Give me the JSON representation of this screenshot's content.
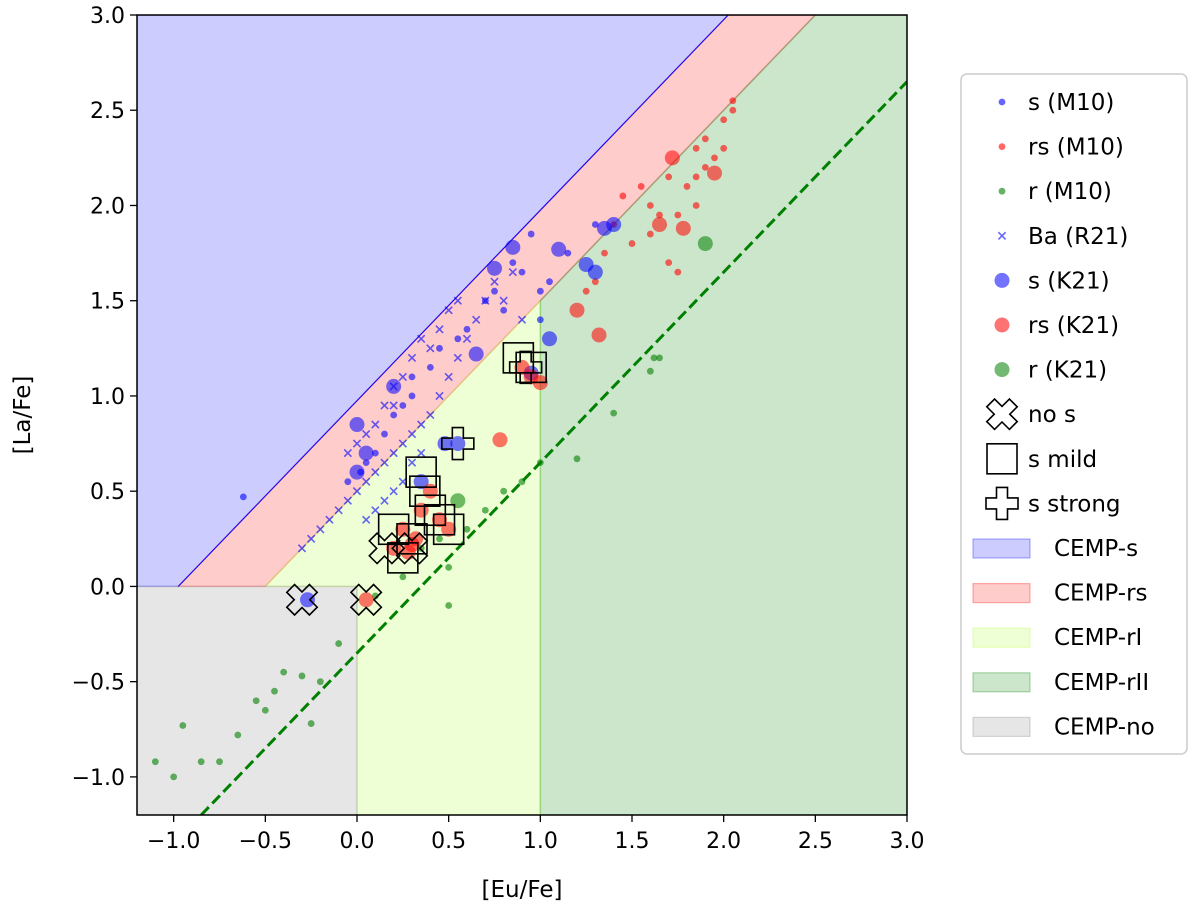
{
  "chart_data": {
    "type": "scatter",
    "xlabel": "[Eu/Fe]",
    "ylabel": "[La/Fe]",
    "xlim": [
      -1.2,
      3.0
    ],
    "ylim": [
      -1.2,
      3.0
    ],
    "xticks": [
      "−1.0",
      "−0.5",
      "0.0",
      "0.5",
      "1.0",
      "1.5",
      "2.0",
      "2.5",
      "3.0"
    ],
    "yticks": [
      "−1.0",
      "−0.5",
      "0.0",
      "0.5",
      "1.0",
      "1.5",
      "2.0",
      "2.5",
      "3.0"
    ],
    "grid": false,
    "legend_position": "outside-right",
    "regions": [
      {
        "name": "CEMP-s",
        "color": "#0000ff",
        "alpha": 0.2,
        "polygon": [
          [
            -0.975,
            0.0
          ],
          [
            -1.2,
            0.0
          ],
          [
            -1.2,
            3.0
          ],
          [
            2.025,
            3.0
          ]
        ]
      },
      {
        "name": "CEMP-rs",
        "color": "#ff0000",
        "alpha": 0.2,
        "polygon": [
          [
            -0.5,
            0.0
          ],
          [
            -0.975,
            0.0
          ],
          [
            2.025,
            3.0
          ],
          [
            2.5,
            3.0
          ]
        ]
      },
      {
        "name": "CEMP-rI",
        "color": "#adff2f",
        "alpha": 0.2,
        "polygon": [
          [
            0.0,
            -1.2
          ],
          [
            0.0,
            0.0
          ],
          [
            -0.5,
            0.0
          ],
          [
            1.0,
            1.5
          ],
          [
            1.0,
            -1.2
          ]
        ]
      },
      {
        "name": "CEMP-rII",
        "color": "#008000",
        "alpha": 0.2,
        "polygon": [
          [
            1.0,
            -1.2
          ],
          [
            1.0,
            1.5
          ],
          [
            2.5,
            3.0
          ],
          [
            3.0,
            3.0
          ],
          [
            3.0,
            -1.2
          ]
        ]
      },
      {
        "name": "CEMP-no",
        "color": "#808080",
        "alpha": 0.2,
        "polygon": [
          [
            -1.2,
            -1.2
          ],
          [
            -1.2,
            0.0
          ],
          [
            0.0,
            0.0
          ],
          [
            0.0,
            -1.2
          ]
        ]
      }
    ],
    "lines": [
      {
        "kind": "solid-thin",
        "color": "#0000ff",
        "points": [
          [
            -0.975,
            0.0
          ],
          [
            2.025,
            3.0
          ]
        ]
      },
      {
        "kind": "dashed",
        "color": "#008000",
        "points": [
          [
            -0.85,
            -1.2
          ],
          [
            3.0,
            2.65
          ]
        ]
      }
    ],
    "series": [
      {
        "name": "s (M10)",
        "marker": "small-dot",
        "color": "#0000ff",
        "points": [
          [
            -0.62,
            0.47
          ],
          [
            -0.05,
            0.55
          ],
          [
            0.02,
            0.6
          ],
          [
            0.05,
            0.65
          ],
          [
            0.1,
            0.7
          ],
          [
            0.15,
            0.8
          ],
          [
            0.2,
            0.9
          ],
          [
            0.25,
            0.95
          ],
          [
            0.3,
            1.0
          ],
          [
            0.3,
            1.1
          ],
          [
            0.4,
            1.15
          ],
          [
            0.45,
            1.25
          ],
          [
            0.55,
            1.3
          ],
          [
            0.6,
            1.35
          ],
          [
            0.7,
            1.5
          ],
          [
            0.75,
            1.55
          ],
          [
            0.8,
            1.45
          ],
          [
            0.85,
            1.7
          ],
          [
            0.9,
            1.65
          ],
          [
            0.95,
            1.85
          ],
          [
            1.0,
            1.4
          ],
          [
            1.0,
            1.55
          ],
          [
            1.05,
            1.6
          ],
          [
            1.15,
            1.75
          ],
          [
            1.3,
            1.9
          ]
        ]
      },
      {
        "name": "rs (M10)",
        "marker": "small-dot",
        "color": "#ff0000",
        "points": [
          [
            1.25,
            1.55
          ],
          [
            1.3,
            1.6
          ],
          [
            1.35,
            1.75
          ],
          [
            1.4,
            1.9
          ],
          [
            1.45,
            2.05
          ],
          [
            1.5,
            1.8
          ],
          [
            1.55,
            2.1
          ],
          [
            1.6,
            1.85
          ],
          [
            1.6,
            2.0
          ],
          [
            1.65,
            1.95
          ],
          [
            1.7,
            1.7
          ],
          [
            1.7,
            2.15
          ],
          [
            1.75,
            1.95
          ],
          [
            1.75,
            1.65
          ],
          [
            1.8,
            2.1
          ],
          [
            1.85,
            2.3
          ],
          [
            1.85,
            2.0
          ],
          [
            1.9,
            2.35
          ],
          [
            1.9,
            2.2
          ],
          [
            1.95,
            2.25
          ],
          [
            2.0,
            2.45
          ],
          [
            2.0,
            2.3
          ],
          [
            2.05,
            2.5
          ],
          [
            2.05,
            2.55
          ],
          [
            1.85,
            2.15
          ]
        ]
      },
      {
        "name": "r (M10)",
        "marker": "small-dot",
        "color": "#008000",
        "points": [
          [
            -1.1,
            -0.92
          ],
          [
            -1.0,
            -1.0
          ],
          [
            -0.95,
            -0.73
          ],
          [
            -0.85,
            -0.92
          ],
          [
            -0.75,
            -0.92
          ],
          [
            -0.65,
            -0.78
          ],
          [
            -0.55,
            -0.6
          ],
          [
            -0.5,
            -0.65
          ],
          [
            -0.45,
            -0.55
          ],
          [
            -0.4,
            -0.45
          ],
          [
            -0.3,
            -0.47
          ],
          [
            -0.2,
            -0.5
          ],
          [
            -0.1,
            -0.3
          ],
          [
            0.1,
            -0.05
          ],
          [
            0.25,
            0.05
          ],
          [
            0.35,
            0.2
          ],
          [
            0.45,
            0.25
          ],
          [
            0.5,
            0.1
          ],
          [
            0.6,
            0.3
          ],
          [
            0.7,
            0.4
          ],
          [
            0.8,
            0.5
          ],
          [
            0.9,
            0.55
          ],
          [
            1.0,
            0.65
          ],
          [
            1.2,
            0.67
          ],
          [
            1.4,
            0.91
          ],
          [
            1.6,
            1.13
          ],
          [
            1.62,
            1.2
          ],
          [
            1.65,
            1.2
          ],
          [
            0.5,
            -0.1
          ],
          [
            -0.25,
            -0.72
          ]
        ]
      },
      {
        "name": "Ba (R21)",
        "marker": "x",
        "color": "#0000ff",
        "points": [
          [
            -0.3,
            0.2
          ],
          [
            -0.25,
            0.25
          ],
          [
            -0.2,
            0.3
          ],
          [
            -0.15,
            0.35
          ],
          [
            -0.1,
            0.4
          ],
          [
            -0.05,
            0.45
          ],
          [
            0.0,
            0.5
          ],
          [
            0.05,
            0.55
          ],
          [
            0.1,
            0.6
          ],
          [
            0.15,
            0.65
          ],
          [
            0.2,
            0.7
          ],
          [
            0.25,
            0.75
          ],
          [
            0.3,
            0.8
          ],
          [
            0.35,
            0.85
          ],
          [
            0.4,
            0.9
          ],
          [
            0.45,
            1.0
          ],
          [
            0.5,
            1.1
          ],
          [
            0.55,
            1.2
          ],
          [
            0.6,
            1.3
          ],
          [
            0.65,
            1.4
          ],
          [
            0.7,
            1.5
          ],
          [
            0.75,
            1.6
          ],
          [
            0.8,
            1.5
          ],
          [
            0.85,
            1.65
          ],
          [
            0.9,
            1.4
          ],
          [
            -0.05,
            0.7
          ],
          [
            0.0,
            0.75
          ],
          [
            0.05,
            0.8
          ],
          [
            0.1,
            0.85
          ],
          [
            0.15,
            0.95
          ],
          [
            0.2,
            1.05
          ],
          [
            0.25,
            1.1
          ],
          [
            0.3,
            1.2
          ],
          [
            0.35,
            1.3
          ],
          [
            0.4,
            1.25
          ],
          [
            0.45,
            1.35
          ],
          [
            0.5,
            1.45
          ],
          [
            0.55,
            1.5
          ],
          [
            0.1,
            0.4
          ],
          [
            0.15,
            0.45
          ],
          [
            0.2,
            0.5
          ],
          [
            0.25,
            0.55
          ],
          [
            0.05,
            0.35
          ],
          [
            0.2,
            0.95
          ],
          [
            0.3,
            0.65
          ],
          [
            0.35,
            0.7
          ]
        ]
      },
      {
        "name": "s (K21)",
        "marker": "large-dot",
        "color": "#0000ff",
        "points": [
          [
            -0.27,
            -0.07
          ],
          [
            0.0,
            0.6
          ],
          [
            0.05,
            0.7
          ],
          [
            0.0,
            0.85
          ],
          [
            0.2,
            1.05
          ],
          [
            0.35,
            0.55
          ],
          [
            0.48,
            0.75
          ],
          [
            0.55,
            0.75
          ],
          [
            0.65,
            1.22
          ],
          [
            0.75,
            1.67
          ],
          [
            0.85,
            1.78
          ],
          [
            0.95,
            1.12
          ],
          [
            1.05,
            1.3
          ],
          [
            1.1,
            1.77
          ],
          [
            1.3,
            1.65
          ],
          [
            1.35,
            1.88
          ],
          [
            1.4,
            1.9
          ],
          [
            1.25,
            1.69
          ]
        ]
      },
      {
        "name": "rs (K21)",
        "marker": "large-dot",
        "color": "#ff0000",
        "points": [
          [
            0.05,
            -0.07
          ],
          [
            0.2,
            0.2
          ],
          [
            0.25,
            0.3
          ],
          [
            0.28,
            0.18
          ],
          [
            0.32,
            0.25
          ],
          [
            0.35,
            0.4
          ],
          [
            0.4,
            0.5
          ],
          [
            0.45,
            0.35
          ],
          [
            0.5,
            0.3
          ],
          [
            0.78,
            0.77
          ],
          [
            0.9,
            1.15
          ],
          [
            0.95,
            1.1
          ],
          [
            1.0,
            1.07
          ],
          [
            1.2,
            1.45
          ],
          [
            1.32,
            1.32
          ],
          [
            1.65,
            1.9
          ],
          [
            1.72,
            2.25
          ],
          [
            1.78,
            1.88
          ],
          [
            1.95,
            2.17
          ],
          [
            0.3,
            0.22
          ]
        ]
      },
      {
        "name": "r (K21)",
        "marker": "large-dot",
        "color": "#008000",
        "points": [
          [
            0.55,
            0.45
          ],
          [
            1.9,
            1.8
          ]
        ]
      },
      {
        "name": "no s",
        "marker": "open-x",
        "color": "#000000",
        "points": [
          [
            -0.3,
            -0.07
          ],
          [
            0.05,
            -0.07
          ],
          [
            0.15,
            0.2
          ],
          [
            0.3,
            0.2
          ]
        ]
      },
      {
        "name": "s mild",
        "marker": "open-square",
        "color": "#000000",
        "points": [
          [
            0.2,
            0.3
          ],
          [
            0.25,
            0.15
          ],
          [
            0.3,
            0.25
          ],
          [
            0.35,
            0.6
          ],
          [
            0.37,
            0.5
          ],
          [
            0.4,
            0.4
          ],
          [
            0.45,
            0.35
          ],
          [
            0.5,
            0.3
          ],
          [
            0.88,
            1.2
          ],
          [
            0.95,
            1.15
          ]
        ]
      },
      {
        "name": "s strong",
        "marker": "open-plus",
        "color": "#000000",
        "points": [
          [
            0.55,
            0.75
          ],
          [
            0.92,
            1.15
          ]
        ]
      }
    ],
    "legend_entries": [
      {
        "label": "s (M10)",
        "type": "small-dot",
        "color": "#0000ff"
      },
      {
        "label": "rs (M10)",
        "type": "small-dot",
        "color": "#ff0000"
      },
      {
        "label": "r (M10)",
        "type": "small-dot",
        "color": "#008000"
      },
      {
        "label": "Ba (R21)",
        "type": "x",
        "color": "#0000ff"
      },
      {
        "label": "s (K21)",
        "type": "large-dot",
        "color": "#0000ff"
      },
      {
        "label": "rs (K21)",
        "type": "large-dot",
        "color": "#ff0000"
      },
      {
        "label": "r (K21)",
        "type": "large-dot",
        "color": "#008000"
      },
      {
        "label": "no s",
        "type": "open-x",
        "color": "#000000"
      },
      {
        "label": "s mild",
        "type": "open-square",
        "color": "#000000"
      },
      {
        "label": "s strong",
        "type": "open-plus",
        "color": "#000000"
      },
      {
        "label": "CEMP-s",
        "type": "patch",
        "color": "#0000ff"
      },
      {
        "label": "CEMP-rs",
        "type": "patch",
        "color": "#ff0000"
      },
      {
        "label": "CEMP-rI",
        "type": "patch",
        "color": "#adff2f"
      },
      {
        "label": "CEMP-rII",
        "type": "patch",
        "color": "#008000"
      },
      {
        "label": "CEMP-no",
        "type": "patch",
        "color": "#808080"
      }
    ]
  }
}
